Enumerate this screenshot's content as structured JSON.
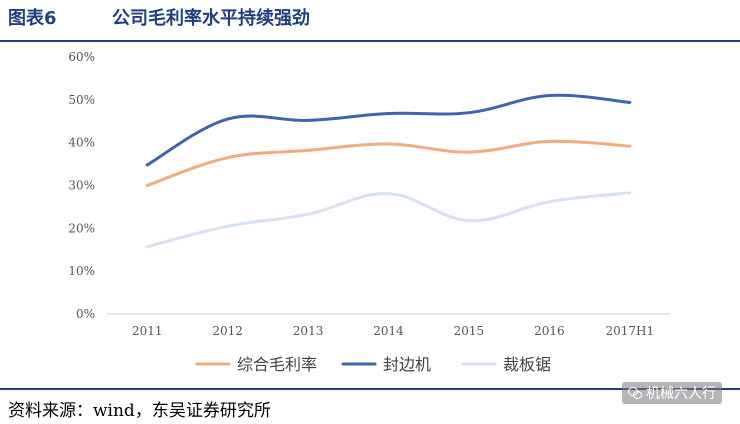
{
  "header": {
    "figure_number": "图表6",
    "title": "公司毛利率水平持续强劲"
  },
  "footer": {
    "source": "资料来源：wind，东吴证券研究所",
    "watermark": "机械六人行"
  },
  "chart_data": {
    "type": "line",
    "title": "",
    "xlabel": "",
    "ylabel": "",
    "categories": [
      "2011",
      "2012",
      "2013",
      "2014",
      "2015",
      "2016",
      "2017H1"
    ],
    "ylim": [
      0,
      60
    ],
    "y_ticks": [
      "0%",
      "10%",
      "20%",
      "30%",
      "40%",
      "50%",
      "60%"
    ],
    "grid": false,
    "legend_position": "bottom",
    "series": [
      {
        "name": "综合毛利率",
        "color": "#f2ab7e",
        "values": [
          30,
          36.5,
          38.2,
          39.7,
          37.8,
          40.3,
          39.2
        ]
      },
      {
        "name": "封边机",
        "color": "#3e64ad",
        "values": [
          34.8,
          45.5,
          45.2,
          46.8,
          47,
          51,
          49.4
        ]
      },
      {
        "name": "裁板锯",
        "color": "#d8e1f1",
        "values": [
          15.7,
          20.5,
          23.3,
          28.1,
          21.8,
          26.2,
          28.3
        ]
      }
    ]
  }
}
